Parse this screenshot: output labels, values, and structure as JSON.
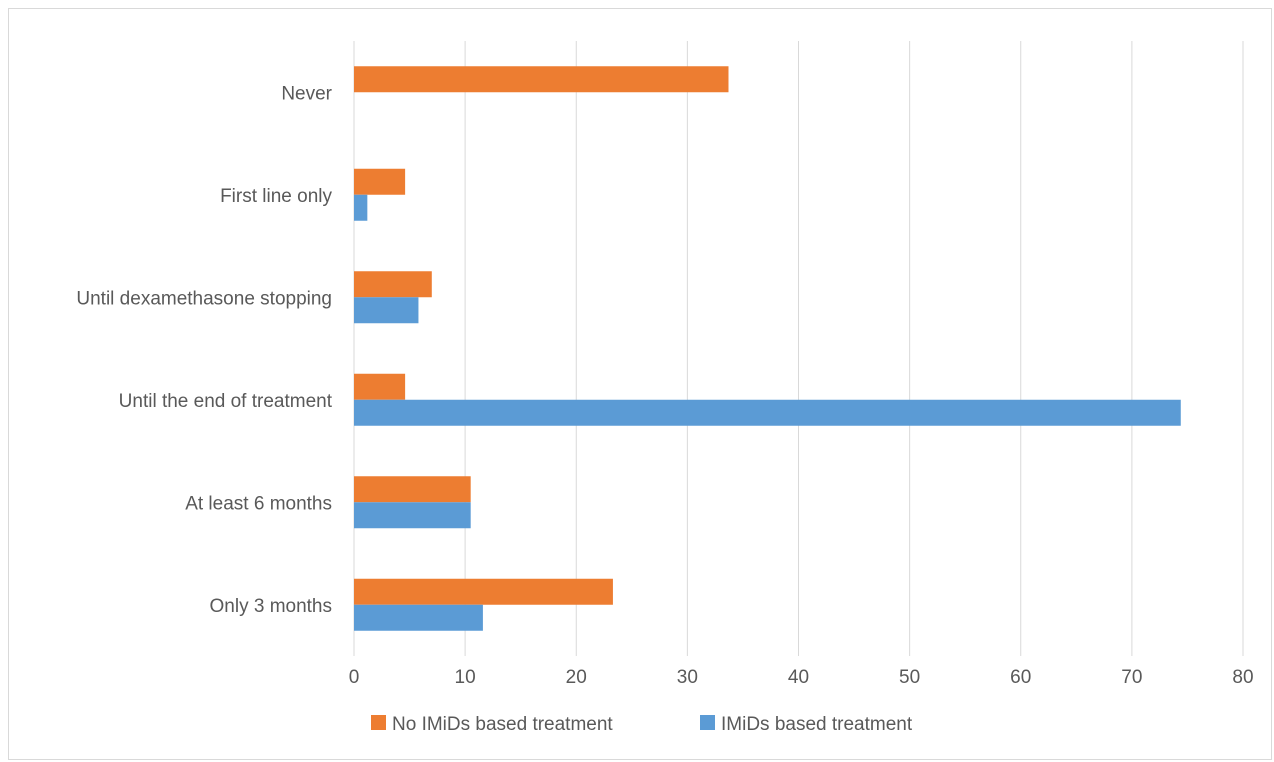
{
  "chart_data": {
    "type": "bar",
    "orientation": "horizontal",
    "categories": [
      "Never",
      "First line only",
      "Until  dexamethasone stopping",
      "Until the end of treatment",
      "At least 6 months",
      "Only 3 months"
    ],
    "series": [
      {
        "name": "No IMiDs based treatment",
        "color": "#ed7d31",
        "values": [
          33.7,
          4.6,
          7.0,
          4.6,
          10.5,
          23.3
        ]
      },
      {
        "name": "IMiDs based treatment",
        "color": "#5b9bd5",
        "values": [
          0,
          1.2,
          5.8,
          74.4,
          10.5,
          11.6
        ]
      }
    ],
    "xlim": [
      0,
      80
    ],
    "x_ticks": [
      "0",
      "10",
      "20",
      "30",
      "40",
      "50",
      "60",
      "70",
      "80"
    ],
    "grid": "vertical",
    "legend_position": "bottom"
  }
}
